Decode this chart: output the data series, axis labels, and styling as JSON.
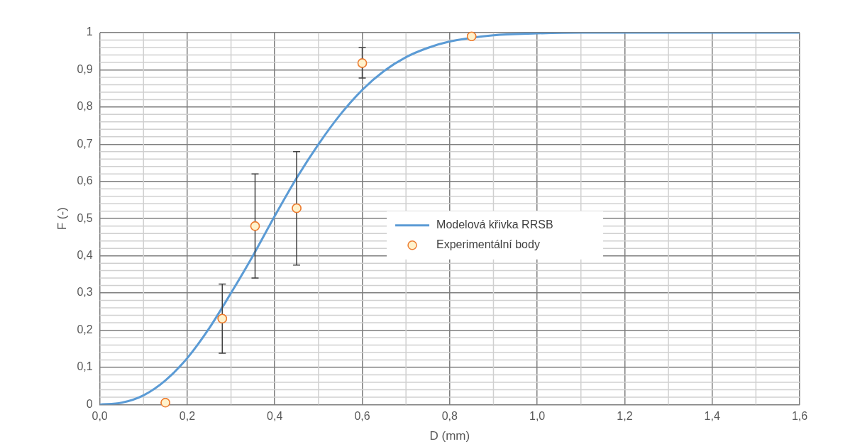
{
  "chart_data": {
    "type": "scatter",
    "xlabel": "D (mm)",
    "ylabel": "F (-)",
    "xlim": [
      0,
      1.6
    ],
    "xticks": [
      {
        "value": 0,
        "label": "0,0"
      },
      {
        "value": 0.2,
        "label": "0,2"
      },
      {
        "value": 0.4,
        "label": "0,4"
      },
      {
        "value": 0.6,
        "label": "0,6"
      },
      {
        "value": 0.8,
        "label": "0,8"
      },
      {
        "value": 1,
        "label": "1,0"
      },
      {
        "value": 1.2,
        "label": "1,2"
      },
      {
        "value": 1.4,
        "label": "1,4"
      },
      {
        "value": 1.6,
        "label": "1,6"
      }
    ],
    "ylim": [
      0,
      1
    ],
    "yticks": [
      0,
      {
        "value": 0.1,
        "label": "0,1"
      },
      {
        "value": 0.2,
        "label": "0,2"
      },
      {
        "value": 0.3,
        "label": "0,3"
      },
      {
        "value": 0.4,
        "label": "0,4"
      },
      {
        "value": 0.5,
        "label": "0,5"
      },
      {
        "value": 0.6,
        "label": "0,6"
      },
      {
        "value": 0.7,
        "label": "0,7"
      },
      {
        "value": 0.8,
        "label": "0,8"
      },
      {
        "value": 0.9,
        "label": "0,9"
      },
      1
    ],
    "grid": true,
    "legend": "center",
    "marker": "circle",
    "series": [
      {
        "name": "Modelová křivka RRSB",
        "type": "line",
        "color": "#5b9bd5",
        "marker": "none",
        "x": [
          0,
          0.05,
          0.1,
          0.15,
          0.2,
          0.25,
          0.3,
          0.35,
          0.4,
          0.45,
          0.5,
          0.55,
          0.6,
          0.65,
          0.7,
          0.75,
          0.8,
          0.9,
          1.0,
          1.1,
          1.2,
          1.4,
          1.6
        ],
        "values": [
          0,
          0.005,
          0.025,
          0.065,
          0.125,
          0.205,
          0.3,
          0.4,
          0.507,
          0.609,
          0.7,
          0.78,
          0.846,
          0.897,
          0.934,
          0.959,
          0.976,
          0.993,
          0.998,
          1,
          1,
          1,
          1
        ]
      },
      {
        "name": "Experimentální body",
        "type": "scatter",
        "color": "#ed7d31",
        "x": [
          0.15,
          0.28,
          0.355,
          0.45,
          0.6,
          0.85
        ],
        "values": [
          0.005,
          0.231,
          0.48,
          0.528,
          0.918,
          0.99
        ],
        "errors": [
          null,
          [
            0.138,
            0.324
          ],
          [
            0.34,
            0.62
          ],
          [
            0.375,
            0.68
          ],
          [
            0.878,
            0.96
          ],
          null
        ]
      }
    ]
  }
}
